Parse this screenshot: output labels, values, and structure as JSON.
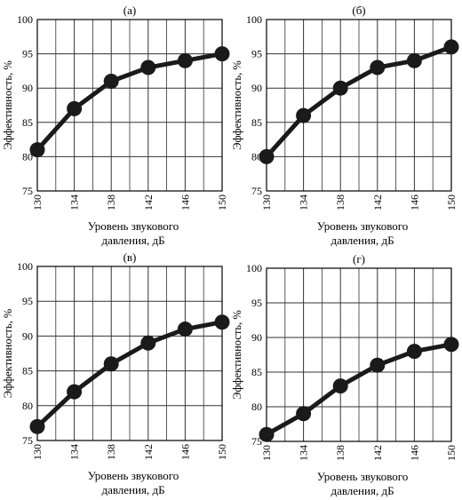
{
  "chart_data": [
    {
      "type": "line",
      "title": "(а)",
      "xlabel_lines": [
        "Уровень звукового",
        "давления, дБ"
      ],
      "ylabel": "Эффективность, %",
      "x": [
        130,
        134,
        138,
        142,
        146,
        150
      ],
      "values": [
        81,
        87,
        91,
        93,
        94,
        95
      ],
      "xlim": [
        130,
        150
      ],
      "ylim": [
        75,
        100
      ],
      "xticks": [
        "130",
        "134",
        "138",
        "142",
        "146",
        "150"
      ],
      "yticks": [
        "75",
        "80",
        "85",
        "90",
        "95",
        "100"
      ],
      "grid": true
    },
    {
      "type": "line",
      "title": "(б)",
      "xlabel_lines": [
        "Уровень звукового",
        "давления, дБ"
      ],
      "ylabel": "Эффективность, %",
      "x": [
        130,
        134,
        138,
        142,
        146,
        150
      ],
      "values": [
        80,
        86,
        90,
        93,
        94,
        96
      ],
      "xlim": [
        130,
        150
      ],
      "ylim": [
        75,
        100
      ],
      "xticks": [
        "130",
        "134",
        "138",
        "142",
        "146",
        "150"
      ],
      "yticks": [
        "75",
        "80",
        "85",
        "90",
        "95",
        "100"
      ],
      "grid": true
    },
    {
      "type": "line",
      "title": "(в)",
      "xlabel_lines": [
        "Уровень звукового",
        "давления, дБ"
      ],
      "ylabel": "Эффективность, %",
      "x": [
        130,
        134,
        138,
        142,
        146,
        150
      ],
      "values": [
        77,
        82,
        86,
        89,
        91,
        92
      ],
      "xlim": [
        130,
        150
      ],
      "ylim": [
        75,
        100
      ],
      "xticks": [
        "130",
        "134",
        "138",
        "142",
        "146",
        "150"
      ],
      "yticks": [
        "75",
        "80",
        "85",
        "90",
        "95",
        "100"
      ],
      "grid": true
    },
    {
      "type": "line",
      "title": "(г)",
      "xlabel_lines": [
        "Уровень звукового",
        "давления, дБ"
      ],
      "ylabel": "Эффективность, %",
      "x": [
        130,
        134,
        138,
        142,
        146,
        150
      ],
      "values": [
        76,
        79,
        83,
        86,
        88,
        89
      ],
      "xlim": [
        130,
        150
      ],
      "ylim": [
        75,
        100
      ],
      "xticks": [
        "130",
        "134",
        "138",
        "142",
        "146",
        "150"
      ],
      "yticks": [
        "75",
        "80",
        "85",
        "90",
        "95",
        "100"
      ],
      "grid": true
    }
  ]
}
